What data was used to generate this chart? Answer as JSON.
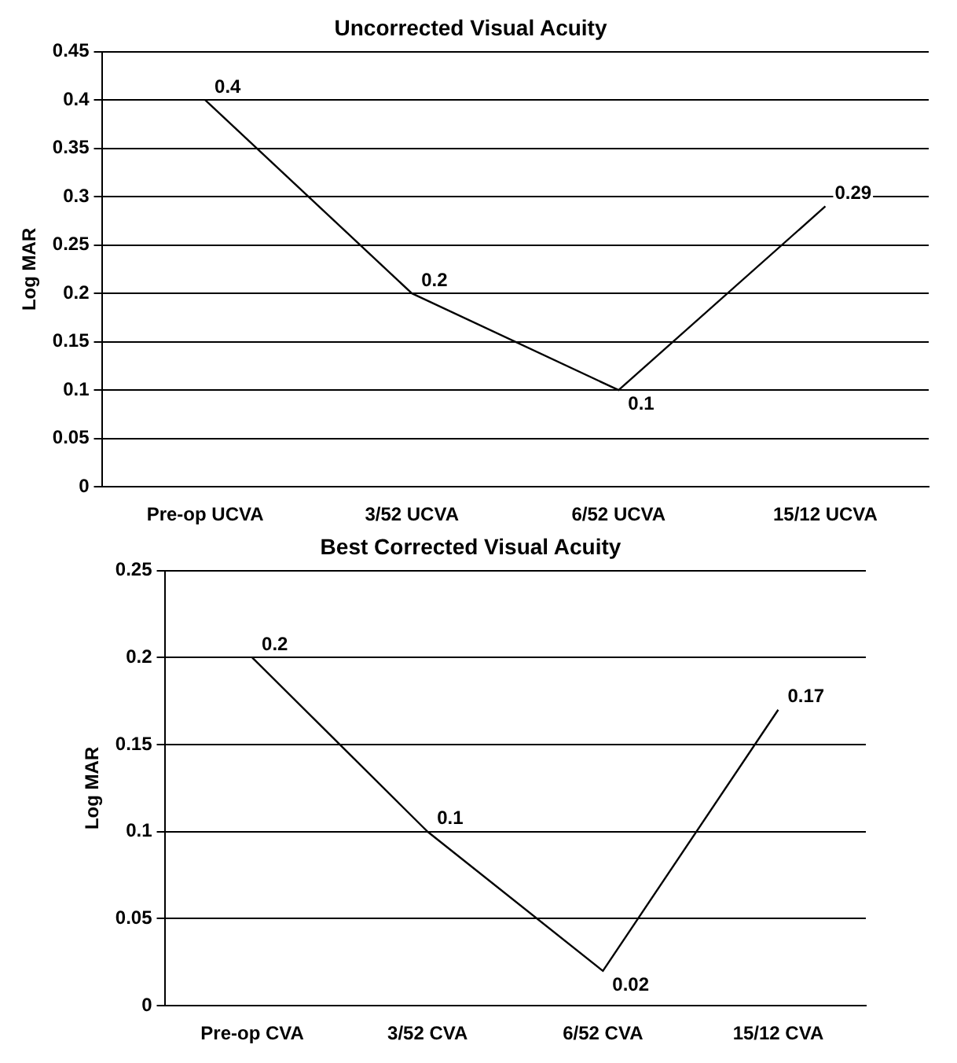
{
  "chart_data": [
    {
      "type": "line",
      "title": "Uncorrected Visual Acuity",
      "ylabel": "Log MAR",
      "categories": [
        "Pre-op UCVA",
        "3/52 UCVA",
        "6/52 UCVA",
        "15/12 UCVA"
      ],
      "series": [
        {
          "color": "#000000",
          "values": [
            0.4,
            0.2,
            0.1,
            0.29
          ]
        }
      ],
      "ylim": [
        0,
        0.45
      ],
      "yticks": [
        0,
        0.05,
        0.1,
        0.15,
        0.2,
        0.25,
        0.3,
        0.35,
        0.4,
        0.45
      ],
      "grid": "y",
      "legend": false,
      "marker": "none",
      "line_style": "solid",
      "data_labels": true
    },
    {
      "type": "line",
      "title": "Best Corrected Visual Acuity",
      "ylabel": "Log MAR",
      "categories": [
        "Pre-op CVA",
        "3/52 CVA",
        "6/52 CVA",
        "15/12 CVA"
      ],
      "series": [
        {
          "color": "#000000",
          "values": [
            0.2,
            0.1,
            0.02,
            0.17
          ]
        }
      ],
      "ylim": [
        0,
        0.25
      ],
      "yticks": [
        0,
        0.05,
        0.1,
        0.15,
        0.2,
        0.25
      ],
      "grid": "y",
      "legend": false,
      "marker": "none",
      "line_style": "solid",
      "data_labels": true
    }
  ]
}
